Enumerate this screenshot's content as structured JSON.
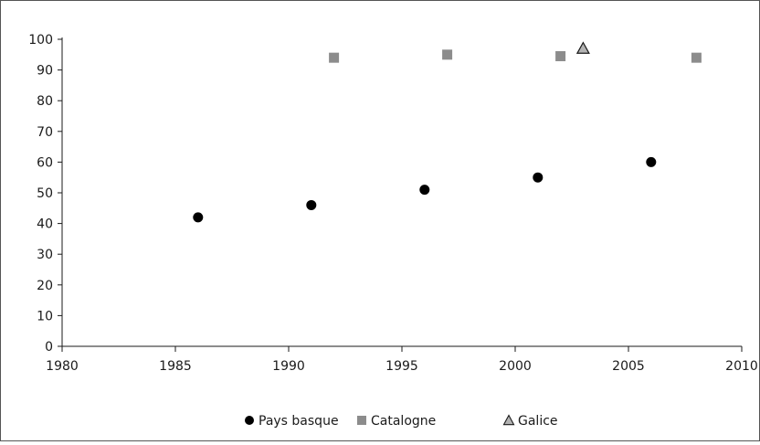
{
  "chart_data": {
    "type": "scatter",
    "title": "",
    "xlabel": "",
    "ylabel": "",
    "xlim": [
      1980,
      2010
    ],
    "ylim": [
      0,
      100
    ],
    "x_ticks": [
      "1980",
      "1985",
      "1990",
      "1995",
      "2000",
      "2005",
      "2010"
    ],
    "y_ticks": [
      "0",
      "10",
      "20",
      "30",
      "40",
      "50",
      "60",
      "70",
      "80",
      "90",
      "100"
    ],
    "grid": false,
    "legend_position": "bottom",
    "series": [
      {
        "name": "Pays basque",
        "marker": "circle",
        "color": "#000000",
        "points": [
          {
            "x": 1986,
            "y": 42
          },
          {
            "x": 1991,
            "y": 46
          },
          {
            "x": 1996,
            "y": 51
          },
          {
            "x": 2001,
            "y": 55
          },
          {
            "x": 2006,
            "y": 60
          }
        ]
      },
      {
        "name": "Catalogne",
        "marker": "square",
        "color": "#8c8c8c",
        "points": [
          {
            "x": 1992,
            "y": 94
          },
          {
            "x": 1997,
            "y": 95
          },
          {
            "x": 2002,
            "y": 94.5
          },
          {
            "x": 2008,
            "y": 94
          }
        ]
      },
      {
        "name": "Galice",
        "marker": "triangle",
        "color": "#b3b3b3",
        "points": [
          {
            "x": 2003,
            "y": 97
          }
        ]
      }
    ]
  }
}
